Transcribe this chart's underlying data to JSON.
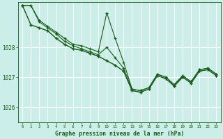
{
  "title": "Graphe pression niveau de la mer (hPa)",
  "bg_color": "#cceee8",
  "plot_bg_color": "#cceee8",
  "grid_color": "#aaddcc",
  "line_color": "#1a5c1a",
  "xlim": [
    -0.5,
    23.5
  ],
  "ylim": [
    1025.5,
    1029.5
  ],
  "yticks": [
    1026,
    1027,
    1028
  ],
  "xticks": [
    0,
    1,
    2,
    3,
    4,
    5,
    6,
    7,
    8,
    9,
    10,
    11,
    12,
    13,
    14,
    15,
    16,
    17,
    18,
    19,
    20,
    21,
    22,
    23
  ],
  "series": [
    [
      1029.4,
      1029.4,
      1028.9,
      1028.7,
      1028.5,
      1028.3,
      1028.1,
      1028.05,
      1027.95,
      1027.85,
      1029.15,
      1028.3,
      1027.5,
      1026.6,
      1026.55,
      1026.65,
      1027.1,
      1027.0,
      1026.75,
      1027.05,
      1026.85,
      1027.25,
      1027.3,
      1027.1
    ],
    [
      1029.4,
      1029.4,
      1028.85,
      1028.65,
      1028.45,
      1028.2,
      1028.05,
      1027.95,
      1027.85,
      1027.75,
      1028.0,
      1027.65,
      1027.3,
      1026.6,
      1026.55,
      1026.65,
      1027.1,
      1027.0,
      1026.75,
      1027.05,
      1026.85,
      1027.25,
      1027.3,
      1027.1
    ],
    [
      1029.4,
      1028.75,
      1028.65,
      1028.55,
      1028.3,
      1028.1,
      1027.95,
      1027.9,
      1027.8,
      1027.7,
      1027.55,
      1027.4,
      1027.2,
      1026.55,
      1026.5,
      1026.6,
      1027.05,
      1026.95,
      1026.7,
      1027.0,
      1026.8,
      1027.2,
      1027.25,
      1027.05
    ],
    [
      1029.4,
      1028.75,
      1028.65,
      1028.55,
      1028.3,
      1028.1,
      1027.95,
      1027.9,
      1027.8,
      1027.7,
      1027.55,
      1027.4,
      1027.2,
      1026.55,
      1026.5,
      1026.6,
      1027.05,
      1026.95,
      1026.7,
      1027.0,
      1026.8,
      1027.2,
      1027.25,
      1027.05
    ]
  ]
}
